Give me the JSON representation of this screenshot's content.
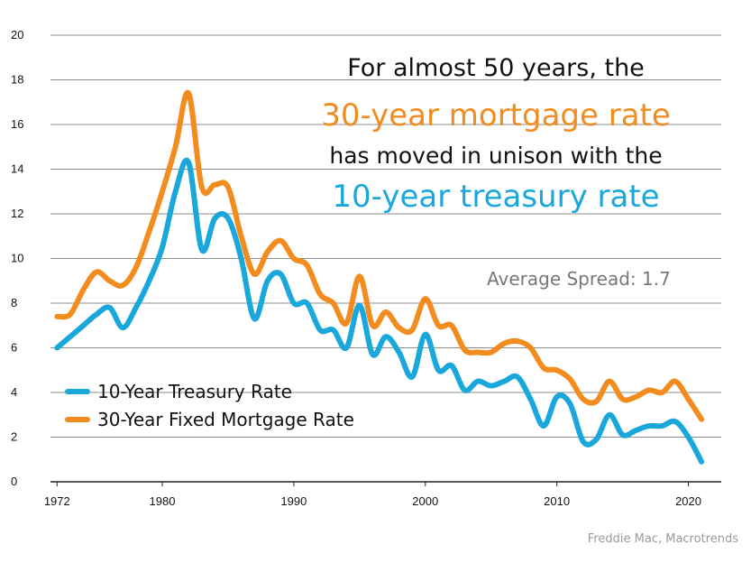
{
  "headline": {
    "line1": "For almost 50 years, the",
    "line2": "30-year mortgage rate",
    "line3": "has moved in unison with the",
    "line4": "10-year treasury rate"
  },
  "spread_note": "Average Spread: 1.7",
  "source": "Freddie Mac, Macrotrends",
  "colors": {
    "treasury": "#1aa7dc",
    "mortgage": "#f28c1e",
    "grid": "#8c8c8c"
  },
  "chart_data": {
    "type": "line",
    "title": "",
    "xlabel": "",
    "ylabel": "",
    "xlim": [
      1971.5,
      2022.5
    ],
    "ylim": [
      0,
      20
    ],
    "x_ticks": [
      1972,
      1980,
      1990,
      2000,
      2010,
      2020
    ],
    "y_ticks": [
      0,
      2,
      4,
      6,
      8,
      10,
      12,
      14,
      16,
      18,
      20
    ],
    "grid": "horizontal",
    "legend_position": "bottom-left",
    "series": [
      {
        "name": "10-Year Treasury Rate",
        "color": "#1aa7dc",
        "x": [
          1972,
          1973,
          1974,
          1975,
          1976,
          1977,
          1978,
          1979,
          1980,
          1981,
          1982,
          1983,
          1984,
          1985,
          1986,
          1987,
          1988,
          1989,
          1990,
          1991,
          1992,
          1993,
          1994,
          1995,
          1996,
          1997,
          1998,
          1999,
          2000,
          2001,
          2002,
          2003,
          2004,
          2005,
          2006,
          2007,
          2008,
          2009,
          2010,
          2011,
          2012,
          2013,
          2014,
          2015,
          2016,
          2017,
          2018,
          2019,
          2020,
          2021
        ],
        "values": [
          6.0,
          6.5,
          7.0,
          7.5,
          7.8,
          6.9,
          7.8,
          9.0,
          10.5,
          13.0,
          14.3,
          10.4,
          11.8,
          11.8,
          10.0,
          7.3,
          9.0,
          9.3,
          8.0,
          8.0,
          6.8,
          6.8,
          6.0,
          7.9,
          5.7,
          6.5,
          5.8,
          4.7,
          6.6,
          5.0,
          5.2,
          4.1,
          4.5,
          4.3,
          4.5,
          4.7,
          3.7,
          2.5,
          3.8,
          3.5,
          1.8,
          1.9,
          3.0,
          2.1,
          2.3,
          2.5,
          2.5,
          2.7,
          2.0,
          0.9
        ]
      },
      {
        "name": "30-Year Fixed Mortgage Rate",
        "color": "#f28c1e",
        "x": [
          1972,
          1973,
          1974,
          1975,
          1976,
          1977,
          1978,
          1979,
          1980,
          1981,
          1982,
          1983,
          1984,
          1985,
          1986,
          1987,
          1988,
          1989,
          1990,
          1991,
          1992,
          1993,
          1994,
          1995,
          1996,
          1997,
          1998,
          1999,
          2000,
          2001,
          2002,
          2003,
          2004,
          2005,
          2006,
          2007,
          2008,
          2009,
          2010,
          2011,
          2012,
          2013,
          2014,
          2015,
          2016,
          2017,
          2018,
          2019,
          2020,
          2021
        ],
        "values": [
          7.4,
          7.5,
          8.6,
          9.4,
          9.0,
          8.8,
          9.6,
          11.2,
          13.0,
          15.0,
          17.4,
          13.2,
          13.3,
          13.2,
          11.0,
          9.3,
          10.3,
          10.8,
          10.0,
          9.7,
          8.4,
          8.0,
          7.1,
          9.2,
          7.0,
          7.6,
          6.9,
          6.8,
          8.2,
          7.0,
          7.0,
          5.9,
          5.8,
          5.8,
          6.2,
          6.3,
          6.0,
          5.1,
          5.0,
          4.6,
          3.7,
          3.6,
          4.5,
          3.7,
          3.8,
          4.1,
          4.0,
          4.5,
          3.7,
          2.8
        ]
      }
    ]
  }
}
